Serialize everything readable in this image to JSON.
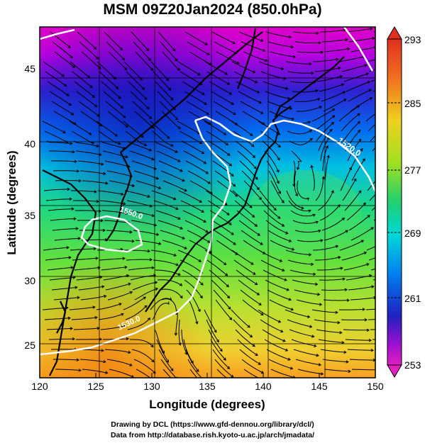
{
  "title": "MSM 09Z20Jan2024 (850.0hPa)",
  "x_axis": {
    "label": "Longitude (degrees)",
    "ticks": [
      "120",
      "125",
      "130",
      "135",
      "140",
      "145",
      "150"
    ]
  },
  "y_axis": {
    "label": "Latitude  (degrees)",
    "ticks": [
      "25",
      "30",
      "35",
      "40",
      "45"
    ]
  },
  "colorbar": {
    "labels": [
      "293",
      "285",
      "277",
      "269",
      "261",
      "253"
    ]
  },
  "contours": {
    "labels": [
      "1520.0",
      "1530.0",
      "1550.0"
    ]
  },
  "credits": {
    "line1": "Drawing by DCL (https://www.gfd-dennou.org/library/dcl/)",
    "line2": "Data from http://database.rish.kyoto-u.ac.jp/arch/jmadata/"
  },
  "colors": {
    "frame": "#000000",
    "contour": "#ffffff",
    "coast": "#000000"
  }
}
